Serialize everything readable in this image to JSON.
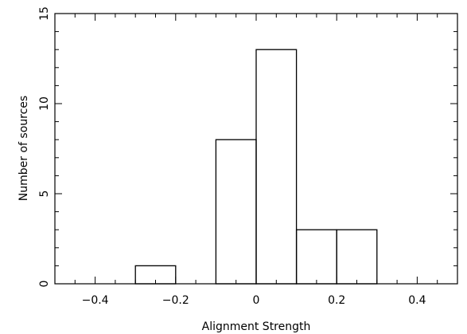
{
  "chart_data": {
    "type": "bar",
    "bins": [
      {
        "x0": -0.3,
        "x1": -0.2,
        "value": 1
      },
      {
        "x0": -0.1,
        "x1": 0.0,
        "value": 8
      },
      {
        "x0": 0.0,
        "x1": 0.1,
        "value": 13
      },
      {
        "x0": 0.1,
        "x1": 0.2,
        "value": 3
      },
      {
        "x0": 0.2,
        "x1": 0.3,
        "value": 3
      }
    ],
    "xlabel": "Alignment Strength",
    "ylabel": "Number of sources",
    "xlim": [
      -0.5,
      0.5
    ],
    "ylim": [
      0,
      15
    ],
    "xticks": [
      -0.4,
      -0.2,
      0,
      0.2,
      0.4
    ],
    "xtick_labels": [
      "−0.4",
      "−0.2",
      "0",
      "0.2",
      "0.4"
    ],
    "yticks": [
      0,
      5,
      10,
      15
    ],
    "ytick_labels": [
      "0",
      "5",
      "10",
      "15"
    ],
    "grid": false,
    "legend": "none"
  }
}
